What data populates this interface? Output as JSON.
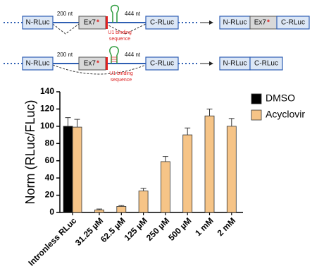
{
  "diagram": {
    "row1": {
      "left": "N-RLuc",
      "exon": "Ex7",
      "star": "*",
      "right": "C-RLuc",
      "len1": "200 nt",
      "len2": "444 nt",
      "note1": "U1 binding",
      "note2": "sequence",
      "product": [
        "N-RLuc",
        "Ex7",
        "*",
        "C-RLuc"
      ]
    },
    "row2": {
      "left": "N-RLuc",
      "exon": "Ex7",
      "star": "*",
      "right": "C-RLuc",
      "len1": "200 nt",
      "len2": "444 nt",
      "note1": "U1 binding",
      "note2": "sequence",
      "product": [
        "N-RLuc",
        "C-RLuc"
      ]
    }
  },
  "chart_data": {
    "type": "bar",
    "ylabel": "Norm (RLuc/FLuc)",
    "categories": [
      "Intronless RLuc",
      "31.25 µM",
      "62.5 µM",
      "125 µM",
      "250 µM",
      "500 µM",
      "1 mM",
      "2 mM"
    ],
    "series": [
      {
        "name": "DMSO",
        "color": "#000000",
        "values": [
          100,
          null,
          null,
          null,
          null,
          null,
          null,
          null
        ],
        "errors": [
          10,
          null,
          null,
          null,
          null,
          null,
          null,
          null
        ]
      },
      {
        "name": "Acyclovir",
        "color": "#f6c487",
        "values": [
          99,
          3,
          7,
          25,
          59,
          90,
          112,
          100
        ],
        "errors": [
          9,
          1,
          1,
          3,
          6,
          8,
          8,
          9
        ]
      }
    ],
    "ylim": [
      0,
      140
    ],
    "yticks": [
      0,
      20,
      40,
      60,
      80,
      100,
      120,
      140
    ],
    "legend": "right"
  }
}
